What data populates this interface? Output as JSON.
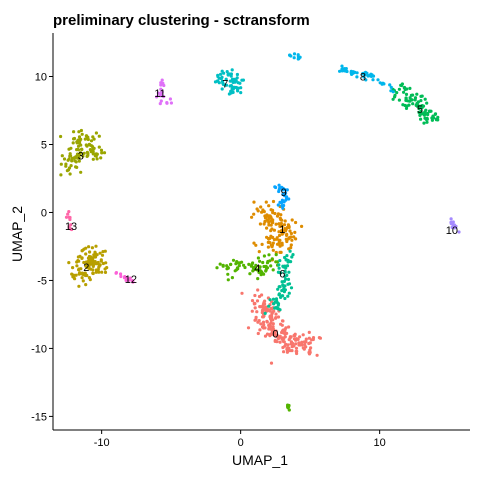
{
  "chart_data": {
    "type": "scatter",
    "title": "preliminary clustering - sctransform",
    "xlabel": "UMAP_1",
    "ylabel": "UMAP_2",
    "xlim": [
      -13.5,
      16.5
    ],
    "ylim": [
      -16.0,
      13.2
    ],
    "x_ticks": [
      -10,
      0,
      10
    ],
    "y_ticks": [
      -15,
      -10,
      -5,
      0,
      5,
      10
    ],
    "x_tick_labels": [
      "-10",
      "0",
      "10"
    ],
    "y_tick_labels": [
      "-15",
      "-10",
      "-5",
      "0",
      "5",
      "10"
    ],
    "grid": false,
    "legend": "none",
    "point_radius": 1.6,
    "clusters": [
      {
        "label": "0",
        "color": "#F8766D",
        "label_pos": [
          2.5,
          -8.9
        ],
        "segments": [
          [
            [
              1.3,
              -6.2
            ],
            [
              2.0,
              -8.0
            ],
            [
              3.0,
              -9.3
            ],
            [
              4.3,
              -9.8
            ],
            [
              5.0,
              -9.6
            ]
          ]
        ],
        "spread": 0.45,
        "n": 200
      },
      {
        "label": "1",
        "color": "#DE8C00",
        "label_pos": [
          3.0,
          -1.2
        ],
        "segments": [
          [
            [
              1.2,
              -0.1
            ],
            [
              2.5,
              -0.3
            ],
            [
              3.4,
              -1.5
            ],
            [
              2.6,
              -2.3
            ],
            [
              1.6,
              -2.4
            ]
          ]
        ],
        "spread": 0.45,
        "n": 130
      },
      {
        "label": "2",
        "color": "#B79F00",
        "label_pos": [
          -11.1,
          -4.0
        ],
        "segments": [
          [
            [
              -11.9,
              -3.2
            ],
            [
              -11.0,
              -3.4
            ],
            [
              -10.3,
              -3.2
            ],
            [
              -10.6,
              -4.4
            ],
            [
              -11.8,
              -4.6
            ]
          ]
        ],
        "spread": 0.42,
        "n": 110
      },
      {
        "label": "3",
        "color": "#9AA500",
        "label_pos": [
          -11.5,
          4.2
        ],
        "segments": [
          [
            [
              -12.3,
              3.2
            ],
            [
              -11.7,
              4.6
            ],
            [
              -11.2,
              5.7
            ],
            [
              -11.0,
              4.4
            ],
            [
              -10.0,
              4.0
            ]
          ]
        ],
        "spread": 0.35,
        "n": 100
      },
      {
        "label": "4",
        "color": "#53B400",
        "label_pos": [
          1.2,
          -4.1
        ],
        "segments": [
          [
            [
              -1.4,
              -3.9
            ],
            [
              0.4,
              -4.0
            ],
            [
              1.5,
              -4.2
            ],
            [
              2.5,
              -3.6
            ]
          ]
        ],
        "spread": 0.35,
        "n": 70
      },
      {
        "label": "5",
        "color": "#00BC56",
        "label_pos": [
          12.9,
          7.6
        ],
        "segments": [
          [
            [
              11.3,
              9.0
            ],
            [
              12.6,
              8.1
            ],
            [
              13.3,
              7.1
            ],
            [
              14.1,
              6.9
            ]
          ]
        ],
        "spread": 0.28,
        "n": 90
      },
      {
        "label": "6",
        "color": "#00C094",
        "label_pos": [
          3.0,
          -4.5
        ],
        "segments": [
          [
            [
              3.6,
              -2.8
            ],
            [
              3.1,
              -4.5
            ],
            [
              3.2,
              -6.0
            ],
            [
              2.4,
              -7.3
            ]
          ]
        ],
        "spread": 0.3,
        "n": 70
      },
      {
        "label": "7",
        "color": "#00BFC4",
        "label_pos": [
          -1.1,
          9.5
        ],
        "segments": [
          [
            [
              -1.5,
              9.6
            ],
            [
              -0.8,
              10.1
            ],
            [
              -0.3,
              9.6
            ],
            [
              -0.7,
              8.9
            ]
          ]
        ],
        "spread": 0.3,
        "n": 60
      },
      {
        "label": "8",
        "color": "#00B6EB",
        "label_pos": [
          8.8,
          10.0
        ],
        "segments": [
          [
            [
              3.3,
              11.7
            ],
            [
              4.4,
              11.4
            ]
          ],
          [
            [
              7.2,
              10.6
            ],
            [
              9.2,
              10.1
            ],
            [
              11.0,
              9.1
            ]
          ]
        ],
        "spread": 0.15,
        "n": 55
      },
      {
        "label": "9",
        "color": "#06A4FF",
        "label_pos": [
          3.1,
          1.5
        ],
        "segments": [
          [
            [
              2.6,
              1.9
            ],
            [
              3.2,
              1.5
            ],
            [
              3.3,
              0.9
            ],
            [
              2.8,
              0.5
            ]
          ]
        ],
        "spread": 0.18,
        "n": 30
      },
      {
        "label": "10",
        "color": "#A58AFF",
        "label_pos": [
          15.2,
          -1.3
        ],
        "segments": [
          [
            [
              15.1,
              -0.4
            ],
            [
              15.3,
              -1.0
            ],
            [
              15.6,
              -1.3
            ]
          ]
        ],
        "spread": 0.12,
        "n": 16
      },
      {
        "label": "11",
        "color": "#DF70F8",
        "label_pos": [
          -5.8,
          8.8
        ],
        "segments": [
          [
            [
              -5.4,
              10.2
            ],
            [
              -5.7,
              9.4
            ],
            [
              -5.8,
              8.3
            ],
            [
              -5.3,
              8.2
            ],
            [
              -4.9,
              8.1
            ]
          ]
        ],
        "spread": 0.12,
        "n": 20
      },
      {
        "label": "12",
        "color": "#FB61D7",
        "label_pos": [
          -7.9,
          -4.9
        ],
        "segments": [
          [
            [
              -9.0,
              -4.4
            ],
            [
              -8.3,
              -4.8
            ],
            [
              -7.7,
              -5.1
            ]
          ]
        ],
        "spread": 0.1,
        "n": 14
      },
      {
        "label": "13",
        "color": "#FF66A8",
        "label_pos": [
          -12.2,
          -1.0
        ],
        "segments": [
          [
            [
              -12.4,
              0.1
            ],
            [
              -12.3,
              -0.8
            ],
            [
              -12.2,
              -1.6
            ]
          ]
        ],
        "spread": 0.08,
        "n": 10
      },
      {
        "label": "",
        "color": "#53B400",
        "label_pos": null,
        "segments": [
          [
            [
              3.4,
              -14.2
            ],
            [
              3.5,
              -14.6
            ]
          ]
        ],
        "spread": 0.05,
        "n": 6
      }
    ]
  }
}
